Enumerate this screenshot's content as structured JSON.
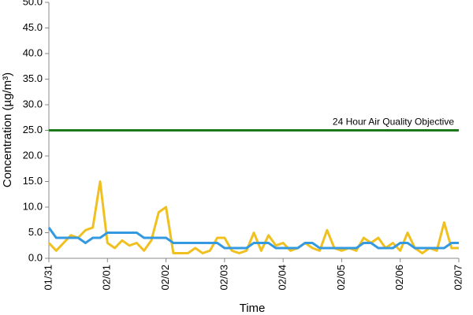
{
  "chart_data": {
    "type": "line",
    "x_label": "Time",
    "y_label": "Concentration (µg/m³)",
    "xlim": [
      0,
      7
    ],
    "xticks": [
      {
        "value": 0,
        "label": "01/31"
      },
      {
        "value": 1,
        "label": "02/01"
      },
      {
        "value": 2,
        "label": "02/02"
      },
      {
        "value": 3,
        "label": "02/03"
      },
      {
        "value": 4,
        "label": "02/04"
      },
      {
        "value": 5,
        "label": "02/05"
      },
      {
        "value": 6,
        "label": "02/06"
      },
      {
        "value": 7,
        "label": "02/07"
      }
    ],
    "ylim": [
      0,
      50
    ],
    "yticks": [
      {
        "value": 0,
        "label": "0.0"
      },
      {
        "value": 5,
        "label": "5.0"
      },
      {
        "value": 10,
        "label": "10.0"
      },
      {
        "value": 15,
        "label": "15.0"
      },
      {
        "value": 20,
        "label": "20.0"
      },
      {
        "value": 25,
        "label": "25.0"
      },
      {
        "value": 30,
        "label": "30.0"
      },
      {
        "value": 35,
        "label": "35.0"
      },
      {
        "value": 40,
        "label": "40.0"
      },
      {
        "value": 45,
        "label": "45.0"
      },
      {
        "value": 50,
        "label": "50.0"
      }
    ],
    "grid": false,
    "reference_line": {
      "value": 25,
      "label": "24 Hour Air Quality Objective",
      "color": "#1a7a1a"
    },
    "x": [
      0,
      0.125,
      0.25,
      0.375,
      0.5,
      0.625,
      0.75,
      0.875,
      1,
      1.125,
      1.25,
      1.375,
      1.5,
      1.625,
      1.75,
      1.875,
      2,
      2.125,
      2.25,
      2.375,
      2.5,
      2.625,
      2.75,
      2.875,
      3,
      3.125,
      3.25,
      3.375,
      3.5,
      3.625,
      3.75,
      3.875,
      4,
      4.125,
      4.25,
      4.375,
      4.5,
      4.625,
      4.75,
      4.875,
      5,
      5.125,
      5.25,
      5.375,
      5.5,
      5.625,
      5.75,
      5.875,
      6,
      6.125,
      6.25,
      6.375,
      6.5,
      6.625,
      6.75,
      6.875,
      7
    ],
    "series": [
      {
        "color": "#f0c020",
        "values": [
          3,
          1.5,
          3,
          4.5,
          4,
          5.5,
          6,
          15,
          3,
          2,
          3.5,
          2.5,
          3,
          1.5,
          3.5,
          9,
          10,
          1,
          1,
          1,
          2,
          1,
          1.5,
          4,
          4,
          1.5,
          1,
          1.5,
          5,
          1.5,
          4.5,
          2.5,
          3,
          1.5,
          2,
          3,
          2,
          1.5,
          5.5,
          2,
          1.5,
          2,
          1.5,
          4,
          3,
          4,
          2,
          3,
          1.5,
          5,
          2,
          1,
          2,
          1.5,
          7,
          2,
          2
        ]
      },
      {
        "color": "#3399e0",
        "values": [
          6,
          4,
          4,
          4,
          4,
          3,
          4,
          4,
          5,
          5,
          5,
          5,
          5,
          4,
          4,
          4,
          4,
          3,
          3,
          3,
          3,
          3,
          3,
          3,
          2,
          2,
          2,
          2,
          3,
          3,
          3,
          2,
          2,
          2,
          2,
          3,
          3,
          2,
          2,
          2,
          2,
          2,
          2,
          3,
          3,
          2,
          2,
          2,
          3,
          3,
          2,
          2,
          2,
          2,
          2,
          3,
          3
        ]
      }
    ]
  }
}
